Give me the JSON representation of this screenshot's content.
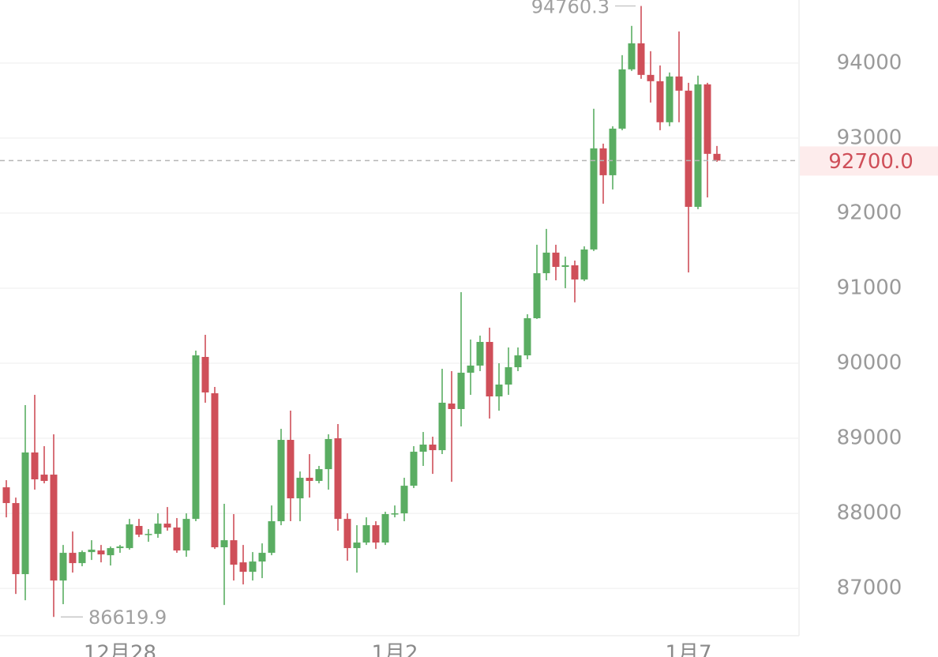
{
  "chart_data": {
    "type": "candlestick",
    "categories": [
      null,
      null,
      null,
      null,
      null,
      null,
      null,
      null,
      null,
      null,
      null,
      null,
      "12月28",
      null,
      null,
      null,
      null,
      null,
      null,
      null,
      null,
      null,
      null,
      null,
      null,
      null,
      null,
      null,
      null,
      null,
      null,
      null,
      null,
      null,
      null,
      null,
      null,
      null,
      null,
      null,
      null,
      "1月2",
      null,
      null,
      null,
      null,
      null,
      null,
      null,
      null,
      null,
      null,
      null,
      null,
      null,
      null,
      null,
      null,
      null,
      null,
      null,
      null,
      null,
      null,
      null,
      null,
      null,
      null,
      null,
      null,
      null,
      null,
      "1月7",
      null,
      null,
      null
    ],
    "open": [
      88347,
      88137,
      87190,
      88811,
      88516,
      88516,
      87105,
      87474,
      87337,
      87484,
      87505,
      87442,
      87537,
      87537,
      87832,
      87716,
      87726,
      87863,
      87811,
      87505,
      87926,
      90084,
      89600,
      87548,
      87642,
      87347,
      87221,
      87358,
      87474,
      87895,
      88979,
      88200,
      88474,
      88432,
      88589,
      89000,
      87926,
      87537,
      87611,
      87842,
      87611,
      87990,
      88000,
      88368,
      88821,
      88916,
      88842,
      89463,
      89390,
      89874,
      89969,
      90284,
      89558,
      89716,
      89947,
      90105,
      90600,
      91200,
      91474,
      91284,
      91305,
      91116,
      91516,
      92863,
      92505,
      93126,
      93916,
      94263,
      93842,
      93758,
      93211,
      93821,
      93632,
      92084,
      93716,
      92790
    ],
    "high": [
      88442,
      88210,
      89442,
      89579,
      88895,
      89053,
      87579,
      87758,
      87505,
      87642,
      87579,
      87558,
      87579,
      87926,
      87926,
      87790,
      88000,
      88084,
      87937,
      88000,
      90168,
      90379,
      89684,
      88127,
      87990,
      87579,
      87484,
      87600,
      88105,
      89126,
      89369,
      88558,
      88789,
      88632,
      89053,
      89190,
      88000,
      87842,
      87947,
      87895,
      88021,
      88105,
      88474,
      88895,
      89084,
      89021,
      89926,
      89895,
      90947,
      90316,
      90368,
      90474,
      90000,
      90210,
      90210,
      90653,
      91579,
      91790,
      91579,
      91421,
      91368,
      91558,
      93390,
      92926,
      93158,
      94105,
      94495,
      94760.3,
      94158,
      93968,
      93874,
      94421,
      93737,
      93832,
      93737,
      92895
    ],
    "low": [
      87947,
      86926,
      86842,
      88316,
      88400,
      86619.9,
      86790,
      87211,
      87295,
      87379,
      87347,
      87305,
      87474,
      87516,
      87684,
      87621,
      87674,
      87769,
      87474,
      87421,
      87895,
      89474,
      87526,
      86779,
      87105,
      87053,
      87105,
      87137,
      87442,
      87842,
      87895,
      87895,
      88210,
      88400,
      88316,
      87769,
      87368,
      87210,
      87579,
      87526,
      87579,
      87947,
      87895,
      88337,
      88632,
      88526,
      88790,
      88421,
      89158,
      89579,
      89895,
      89263,
      89368,
      89579,
      89895,
      90053,
      90590,
      91105,
      91105,
      91000,
      90811,
      91095,
      91495,
      92126,
      92316,
      93105,
      93895,
      93790,
      93474,
      93105,
      93158,
      93211,
      91210,
      92053,
      92210,
      92684
    ],
    "close": [
      88137,
      87190,
      88811,
      88453,
      88432,
      87105,
      87474,
      87337,
      87484,
      87516,
      87453,
      87537,
      87558,
      87853,
      87716,
      87726,
      87863,
      87811,
      87505,
      87926,
      90105,
      89611,
      87548,
      87642,
      87316,
      87221,
      87358,
      87474,
      87895,
      88979,
      88200,
      88474,
      88432,
      88589,
      88990,
      87926,
      87537,
      87611,
      87842,
      87611,
      87990,
      88000,
      88368,
      88821,
      88916,
      88842,
      89474,
      89390,
      89874,
      89969,
      90284,
      89558,
      89716,
      89947,
      90105,
      90600,
      91200,
      91474,
      91284,
      91305,
      91116,
      91516,
      92863,
      92505,
      93126,
      93916,
      94263,
      93842,
      93758,
      93211,
      93821,
      93632,
      92084,
      93716,
      92790,
      92700
    ],
    "up_color": "#5aad62",
    "down_color": "#cf4f59",
    "ylim": [
      86370,
      94840
    ],
    "yticks": [
      87000,
      88000,
      89000,
      90000,
      91000,
      92000,
      93000,
      94000
    ],
    "grid": true,
    "last_price": {
      "value": 92700,
      "label": "92700.0"
    },
    "max_high": 94760.3,
    "min_low": 86619.9
  }
}
